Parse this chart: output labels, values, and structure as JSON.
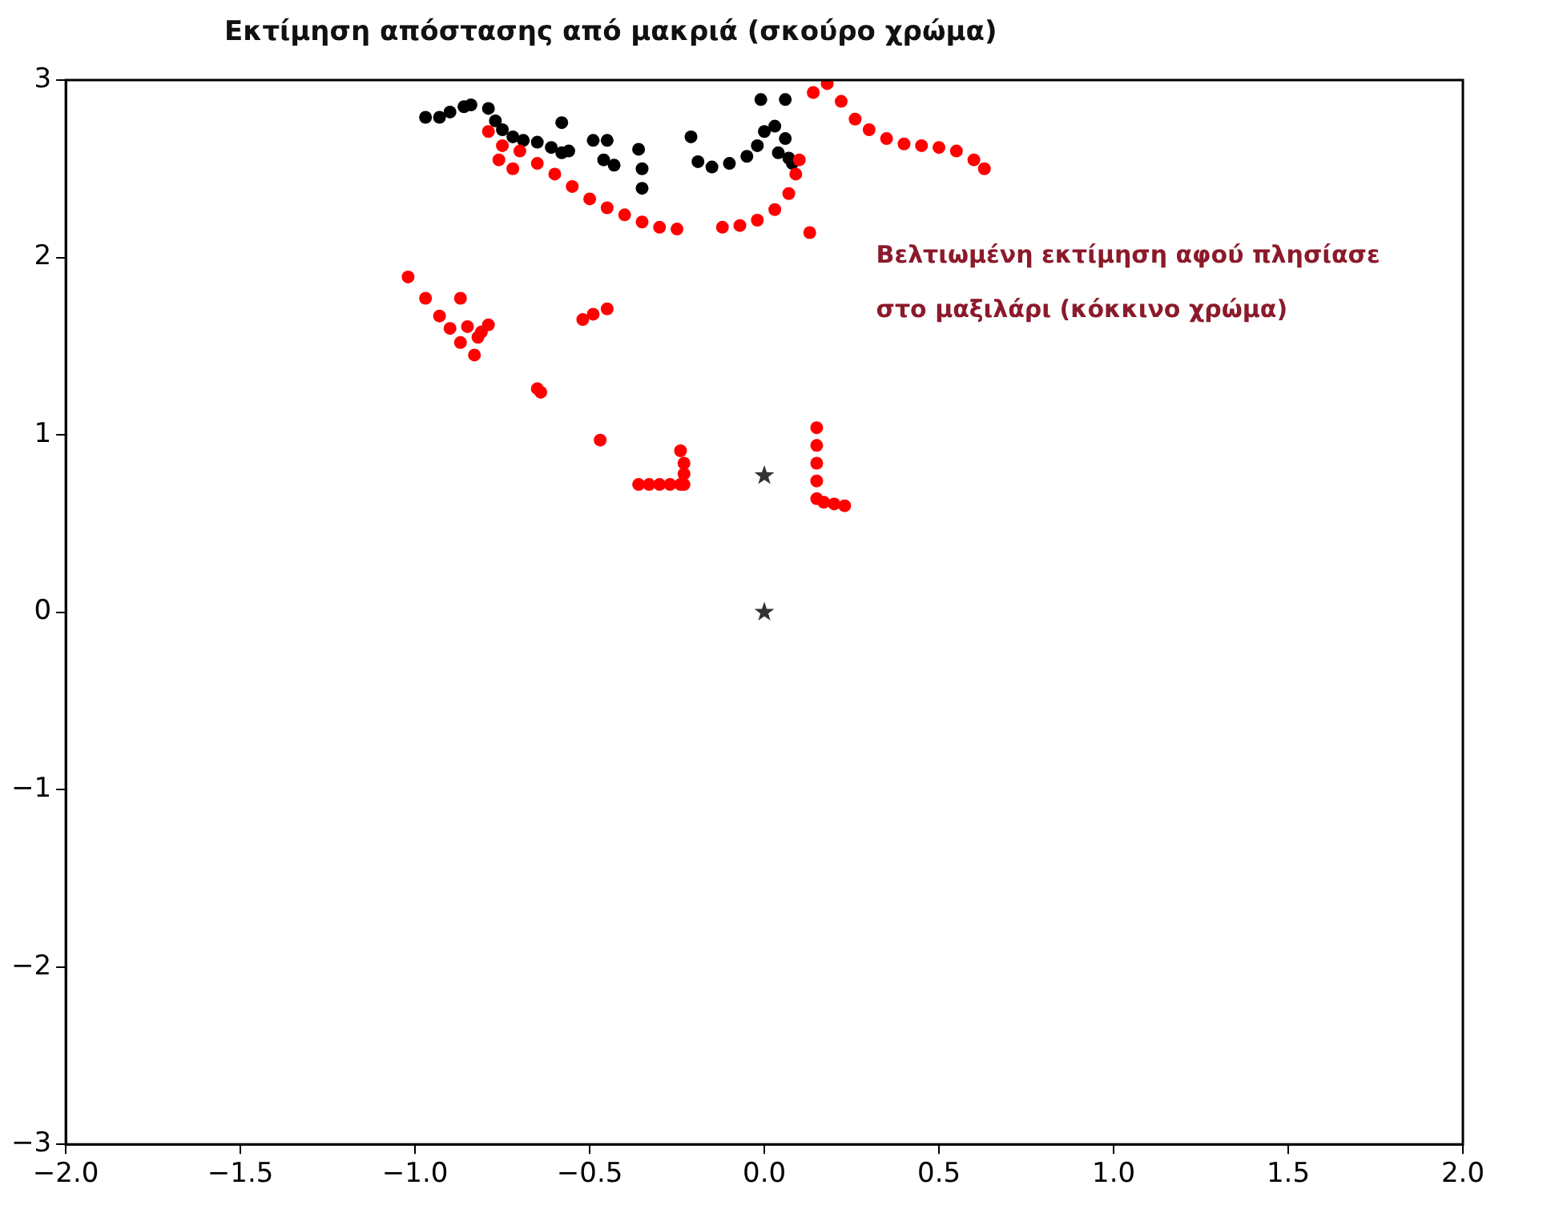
{
  "chart_data": {
    "type": "scatter",
    "title": "Εκτίμηση απόστασης από μακριά (σκούρο χρώμα)",
    "annotations": [
      "Βελτιωμένη εκτίμηση αφού πλησίασε στο μαξιλάρι (κόκκινο χρώμα)"
    ],
    "xlim": [
      -2,
      2
    ],
    "ylim": [
      -3,
      3
    ],
    "xticks": [
      {
        "value": -2,
        "label": "−2.0"
      },
      {
        "value": -1.5,
        "label": "−1.5"
      },
      {
        "value": -1,
        "label": "−1.0"
      },
      {
        "value": -0.5,
        "label": "−0.5"
      },
      {
        "value": 0,
        "label": "0.0"
      },
      {
        "value": 0.5,
        "label": "0.5"
      },
      {
        "value": 1,
        "label": "1.0"
      },
      {
        "value": 1.5,
        "label": "1.5"
      },
      {
        "value": 2,
        "label": "2.0"
      }
    ],
    "yticks": [
      {
        "value": -3,
        "label": "−3"
      },
      {
        "value": -2,
        "label": "−2"
      },
      {
        "value": -1,
        "label": "−1"
      },
      0,
      1,
      2,
      3
    ],
    "grid": false,
    "legend": false,
    "series": [
      {
        "color": "#ff0000",
        "marker": "circle",
        "x": [
          -0.79,
          -0.76,
          -0.75,
          -0.72,
          -0.7,
          -0.65,
          -0.6,
          -0.55,
          -0.5,
          -0.45,
          -0.4,
          -0.35,
          -0.3,
          -0.25,
          -0.12,
          -0.07,
          -0.02,
          0.03,
          0.07,
          0.09,
          0.1,
          0.13,
          0.14,
          0.18,
          0.22,
          0.26,
          0.3,
          0.35,
          0.4,
          0.45,
          0.5,
          0.55,
          0.6,
          0.63,
          -1.02,
          -0.97,
          -0.87,
          -0.93,
          -0.9,
          -0.87,
          -0.83,
          -0.85,
          -0.81,
          -0.79,
          -0.82,
          -0.52,
          -0.49,
          -0.45,
          -0.65,
          -0.64,
          -0.47,
          -0.36,
          -0.33,
          -0.3,
          -0.27,
          -0.24,
          -0.23,
          -0.23,
          -0.23,
          -0.24,
          0.15,
          0.15,
          0.15,
          0.15,
          0.15,
          0.17,
          0.2,
          0.23
        ],
        "values": [
          2.71,
          2.55,
          2.63,
          2.5,
          2.6,
          2.53,
          2.47,
          2.4,
          2.33,
          2.28,
          2.24,
          2.2,
          2.17,
          2.16,
          2.17,
          2.18,
          2.21,
          2.27,
          2.36,
          2.47,
          2.55,
          2.14,
          2.93,
          2.98,
          2.88,
          2.78,
          2.72,
          2.67,
          2.64,
          2.63,
          2.62,
          2.6,
          2.55,
          2.5,
          1.89,
          1.77,
          1.77,
          1.67,
          1.6,
          1.52,
          1.45,
          1.61,
          1.58,
          1.62,
          1.55,
          1.65,
          1.68,
          1.71,
          1.26,
          1.24,
          0.97,
          0.72,
          0.72,
          0.72,
          0.72,
          0.72,
          0.72,
          0.78,
          0.84,
          0.91,
          1.04,
          0.94,
          0.84,
          0.74,
          0.64,
          0.62,
          0.61,
          0.6
        ]
      },
      {
        "color": "#000000",
        "marker": "circle",
        "x": [
          -0.97,
          -0.93,
          -0.9,
          -0.86,
          -0.84,
          -0.79,
          -0.77,
          -0.75,
          -0.72,
          -0.69,
          -0.65,
          -0.61,
          -0.58,
          -0.56,
          -0.58,
          -0.49,
          -0.45,
          -0.46,
          -0.43,
          -0.36,
          -0.35,
          -0.35,
          -0.21,
          -0.19,
          -0.15,
          -0.1,
          -0.05,
          -0.02,
          0.0,
          -0.01,
          0.03,
          0.06,
          0.06,
          0.07,
          0.04,
          0.08
        ],
        "values": [
          2.79,
          2.79,
          2.82,
          2.85,
          2.86,
          2.84,
          2.77,
          2.72,
          2.68,
          2.66,
          2.65,
          2.62,
          2.59,
          2.6,
          2.76,
          2.66,
          2.66,
          2.55,
          2.52,
          2.61,
          2.5,
          2.39,
          2.68,
          2.54,
          2.51,
          2.53,
          2.57,
          2.63,
          2.71,
          2.89,
          2.74,
          2.89,
          2.67,
          2.56,
          2.59,
          2.53
        ]
      },
      {
        "color": "#333333",
        "marker": "star",
        "x": [
          0,
          0
        ],
        "values": [
          0.77,
          0
        ]
      }
    ]
  }
}
